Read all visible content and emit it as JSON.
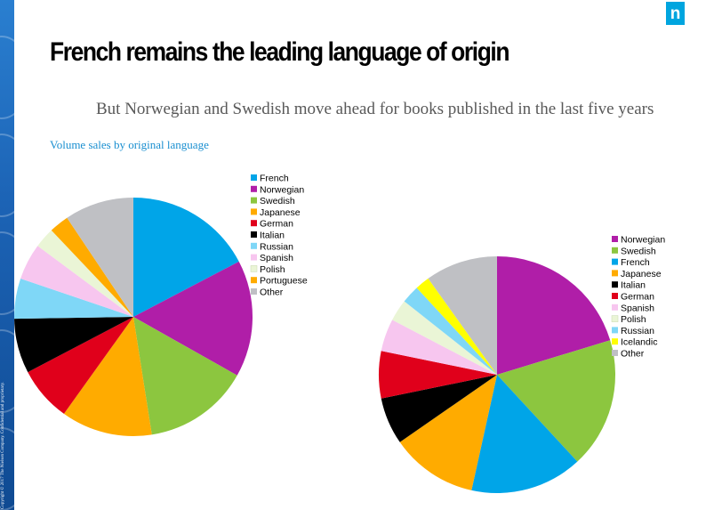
{
  "slide": {
    "title": "French remains the leading language of origin",
    "subtitle": "But Norwegian and Swedish move ahead for books published in the last five years",
    "caption": "Volume sales by original language",
    "copyright": "Copyright © 2017 The Nielsen Company. Confidential and proprietary.",
    "logo_text": "n"
  },
  "chart_data": [
    {
      "type": "pie",
      "legend_position": "right",
      "slices": [
        {
          "label": "French",
          "value": 17.5,
          "color": "#00a5e8"
        },
        {
          "label": "Norwegian",
          "value": 16.0,
          "color": "#b01ea8"
        },
        {
          "label": "Swedish",
          "value": 14.5,
          "color": "#8cc63f"
        },
        {
          "label": "Japanese",
          "value": 12.5,
          "color": "#ffab00"
        },
        {
          "label": "German",
          "value": 7.5,
          "color": "#e0001b"
        },
        {
          "label": "Italian",
          "value": 7.5,
          "color": "#000000"
        },
        {
          "label": "Russian",
          "value": 5.5,
          "color": "#7fd7f7"
        },
        {
          "label": "Spanish",
          "value": 5.0,
          "color": "#f7c6ef"
        },
        {
          "label": "Polish",
          "value": 2.8,
          "color": "#eaf5d6"
        },
        {
          "label": "Portuguese",
          "value": 2.7,
          "color": "#ffab00"
        },
        {
          "label": "Other",
          "value": 9.5,
          "color": "#bfc0c4"
        }
      ]
    },
    {
      "type": "pie",
      "legend_position": "right",
      "slices": [
        {
          "label": "Norwegian",
          "value": 20.5,
          "color": "#b01ea8"
        },
        {
          "label": "Swedish",
          "value": 18.0,
          "color": "#8cc63f"
        },
        {
          "label": "French",
          "value": 15.5,
          "color": "#00a5e8"
        },
        {
          "label": "Japanese",
          "value": 12.0,
          "color": "#ffab00"
        },
        {
          "label": "Italian",
          "value": 6.5,
          "color": "#000000"
        },
        {
          "label": "German",
          "value": 6.5,
          "color": "#e0001b"
        },
        {
          "label": "Spanish",
          "value": 4.5,
          "color": "#f7c6ef"
        },
        {
          "label": "Polish",
          "value": 3.0,
          "color": "#eaf5d6"
        },
        {
          "label": "Russian",
          "value": 2.5,
          "color": "#7fd7f7"
        },
        {
          "label": "Icelandic",
          "value": 2.0,
          "color": "#ffff00"
        },
        {
          "label": "Other",
          "value": 10.0,
          "color": "#bfc0c4"
        }
      ]
    }
  ]
}
